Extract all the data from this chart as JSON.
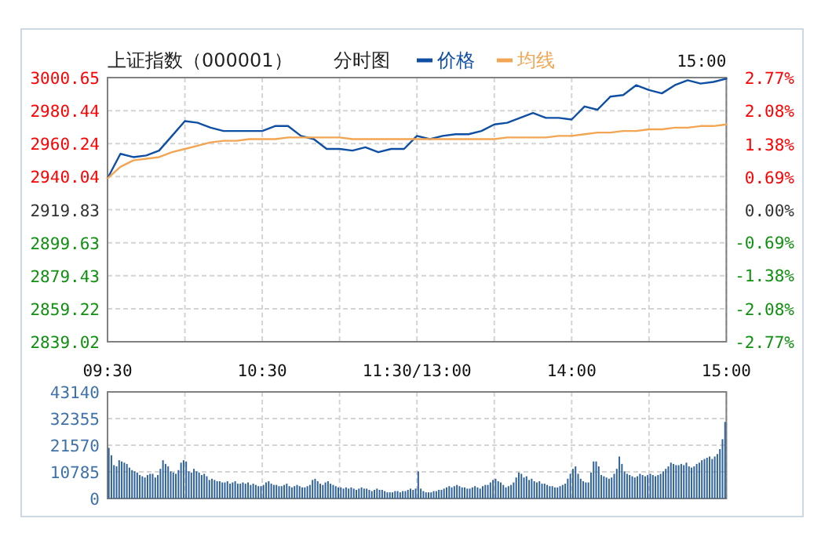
{
  "chart_data": [
    {
      "type": "line",
      "title": "上证指数（000001）",
      "subtitle": "分时图",
      "annotations": [
        "15:00"
      ],
      "legend": "top",
      "grid": true,
      "categories": [
        "09:30",
        null,
        null,
        null,
        null,
        null,
        null,
        null,
        null,
        null,
        null,
        null,
        "10:30",
        null,
        null,
        null,
        null,
        null,
        null,
        null,
        null,
        null,
        null,
        null,
        "11:30/13:00",
        null,
        null,
        null,
        null,
        null,
        null,
        null,
        null,
        null,
        null,
        null,
        "14:00",
        null,
        null,
        null,
        null,
        null,
        null,
        null,
        null,
        null,
        null,
        null,
        "15:00"
      ],
      "ylim": [
        2839.02,
        3000.65
      ],
      "yticks": [
        2839.02,
        2859.22,
        2879.43,
        2899.63,
        2919.83,
        2940.04,
        2960.24,
        2980.44,
        3000.65
      ],
      "y2lim": [
        -2.77,
        2.77
      ],
      "y2ticks": [
        {
          "value": -2.77,
          "label": "-2.77%"
        },
        {
          "value": -2.08,
          "label": "-2.08%"
        },
        {
          "value": -1.38,
          "label": "-1.38%"
        },
        {
          "value": -0.69,
          "label": "-0.69%"
        },
        {
          "value": 0,
          "label": "0.00%"
        },
        {
          "value": 0.69,
          "label": "0.69%"
        },
        {
          "value": 1.38,
          "label": "1.38%"
        },
        {
          "value": 2.08,
          "label": "2.08%"
        },
        {
          "value": 2.77,
          "label": "2.77%"
        }
      ],
      "series": [
        {
          "name": "价格",
          "color": "#0f4fa3",
          "values": [
            2939,
            2954,
            2952,
            2953,
            2956,
            2965,
            2974,
            2973,
            2970,
            2968,
            2968,
            2968,
            2968,
            2971,
            2971,
            2965,
            2963,
            2957,
            2957,
            2956,
            2958,
            2955,
            2957,
            2957,
            2965,
            2963,
            2965,
            2966,
            2966,
            2968,
            2972,
            2973,
            2976,
            2979,
            2976,
            2976,
            2975,
            2983,
            2981,
            2989,
            2990,
            2996,
            2993,
            2991,
            2996,
            2999,
            2997,
            2998,
            3000
          ]
        },
        {
          "name": "均线",
          "color": "#f2a654",
          "values": [
            2939,
            2946,
            2950,
            2951,
            2952,
            2955,
            2957,
            2959,
            2961,
            2962,
            2962,
            2963,
            2963,
            2963,
            2964,
            2964,
            2964,
            2964,
            2964,
            2963,
            2963,
            2963,
            2963,
            2963,
            2963,
            2963,
            2963,
            2963,
            2963,
            2963,
            2963,
            2964,
            2964,
            2964,
            2964,
            2965,
            2965,
            2966,
            2967,
            2967,
            2968,
            2968,
            2969,
            2969,
            2970,
            2970,
            2971,
            2971,
            2972
          ]
        }
      ]
    },
    {
      "type": "bar",
      "color": "#2f6299",
      "grid": true,
      "tick_labels": "y",
      "categories": [
        null,
        null,
        null,
        null,
        null,
        null,
        null,
        null,
        null,
        null,
        null,
        null,
        null,
        null,
        null,
        null,
        null,
        null,
        null,
        null,
        null,
        null,
        null,
        null,
        null,
        null,
        null,
        null,
        null,
        null,
        null,
        null,
        null,
        null,
        null,
        null,
        null,
        null,
        null,
        null,
        null,
        null,
        null,
        null,
        null,
        null,
        null,
        null,
        null,
        null,
        null,
        null,
        null,
        null,
        null,
        null,
        null,
        null,
        null,
        null,
        null,
        null,
        null,
        null,
        null,
        null,
        null,
        null,
        null,
        null,
        null,
        null,
        null,
        null,
        null,
        null,
        null,
        null,
        null,
        null,
        null,
        null,
        null,
        null,
        null,
        null,
        null,
        null,
        null,
        null,
        null,
        null,
        null,
        null,
        null,
        null,
        null,
        null,
        null,
        null,
        null,
        null,
        null,
        null,
        null,
        null,
        null,
        null,
        null,
        null,
        null,
        null,
        null,
        null,
        null,
        null,
        null,
        null,
        null,
        null,
        null,
        null,
        null,
        null,
        null,
        null,
        null,
        null,
        null,
        null,
        null,
        null,
        null,
        null,
        null,
        null,
        null,
        null,
        null,
        null,
        null,
        null,
        null,
        null,
        null,
        null,
        null,
        null,
        null,
        null,
        null,
        null,
        null,
        null,
        null,
        null,
        null,
        null,
        null,
        null,
        null,
        null,
        null,
        null,
        null,
        null,
        null,
        null,
        null,
        null,
        null,
        null,
        null,
        null,
        null,
        null,
        null,
        null,
        null,
        null,
        null,
        null,
        null,
        null,
        null,
        null,
        null,
        null,
        null,
        null,
        null,
        null,
        null,
        null,
        null,
        null,
        null,
        null,
        null,
        null,
        null,
        null,
        null,
        null,
        null,
        null,
        null,
        null,
        null,
        null,
        null,
        null,
        null,
        null,
        null,
        null,
        null,
        null,
        null,
        null,
        null,
        null,
        null,
        null,
        null,
        null,
        null,
        null,
        null,
        null,
        null,
        null,
        null,
        null,
        null,
        null,
        null,
        null,
        null,
        null
      ],
      "ylim": [
        0,
        43140
      ],
      "yticks": [
        0,
        10785,
        21570,
        32355,
        43140
      ],
      "values": [
        20500,
        17500,
        13500,
        13000,
        15500,
        15000,
        14500,
        14000,
        12500,
        11500,
        11000,
        10500,
        9500,
        9000,
        8500,
        9500,
        10000,
        10000,
        8500,
        9500,
        12000,
        15500,
        14000,
        13000,
        11000,
        10500,
        10000,
        11500,
        14500,
        15500,
        15000,
        11000,
        10500,
        12000,
        11000,
        10500,
        9500,
        10000,
        9000,
        7500,
        8000,
        7500,
        7000,
        7000,
        6500,
        6500,
        7000,
        6000,
        6500,
        7000,
        6000,
        6000,
        6500,
        6000,
        6500,
        5500,
        6000,
        5500,
        5000,
        5000,
        5500,
        6500,
        7000,
        6000,
        5500,
        5500,
        5000,
        5000,
        5500,
        6000,
        5000,
        4500,
        5000,
        5500,
        5000,
        4500,
        4500,
        5000,
        5500,
        7500,
        8000,
        7000,
        6000,
        5500,
        6500,
        7000,
        6000,
        5500,
        5000,
        4500,
        4500,
        4000,
        4500,
        4000,
        4500,
        4000,
        3500,
        4000,
        4500,
        4000,
        4000,
        3500,
        3000,
        3500,
        4000,
        3500,
        3500,
        3000,
        2500,
        2500,
        2500,
        3000,
        3000,
        2500,
        3000,
        3000,
        3500,
        4000,
        3500,
        4000,
        11000,
        4000,
        3000,
        2500,
        2500,
        2500,
        3000,
        3000,
        3500,
        3500,
        4000,
        4500,
        5000,
        4500,
        5000,
        5500,
        5000,
        4500,
        4500,
        4000,
        4000,
        4500,
        5000,
        4500,
        4000,
        5000,
        5500,
        5500,
        6500,
        7500,
        8000,
        7000,
        6500,
        5500,
        4500,
        5000,
        5500,
        6500,
        8500,
        10500,
        10000,
        8500,
        9000,
        7500,
        8000,
        7000,
        6500,
        7000,
        6000,
        6000,
        5500,
        5000,
        5000,
        4500,
        4500,
        5000,
        5500,
        6000,
        8000,
        10000,
        12000,
        13000,
        10000,
        8000,
        7000,
        6500,
        6500,
        10500,
        15000,
        15000,
        13000,
        9500,
        9000,
        8500,
        8000,
        8500,
        10000,
        12000,
        17000,
        14000,
        11000,
        10000,
        9500,
        9000,
        8500,
        9000,
        10000,
        9500,
        9000,
        9500,
        10000,
        9500,
        9000,
        9500,
        10000,
        11000,
        12000,
        13000,
        14500,
        14000,
        13500,
        13500,
        14000,
        13500,
        14500,
        13000,
        12500,
        13000,
        14000,
        14500,
        15500,
        16000,
        16500,
        17000,
        16000,
        17000,
        18000,
        20000,
        24000,
        31000
      ]
    }
  ]
}
